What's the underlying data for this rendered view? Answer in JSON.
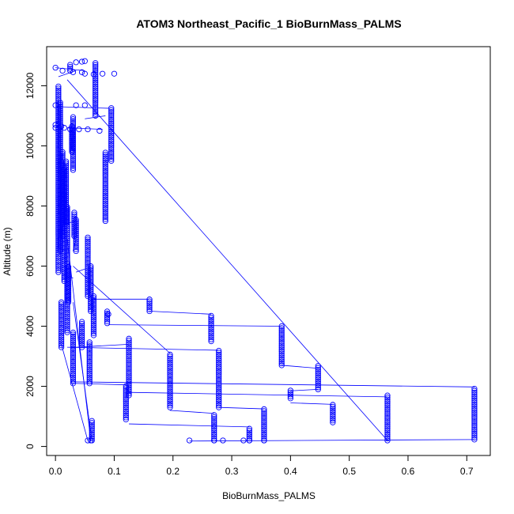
{
  "chart_data": {
    "type": "scatter",
    "title": "ATOM3 Northeast_Pacific_1 BioBurnMass_PALMS",
    "xlabel": "BioBurnMass_PALMS",
    "ylabel": "Altitude (m)",
    "xlim": [
      -0.015,
      0.74
    ],
    "ylim": [
      -300,
      13300
    ],
    "xticks": [
      0.0,
      0.1,
      0.2,
      0.3,
      0.4,
      0.5,
      0.6,
      0.7
    ],
    "xtick_labels": [
      "0.0",
      "0.1",
      "0.2",
      "0.3",
      "0.4",
      "0.5",
      "0.6",
      "0.7"
    ],
    "yticks": [
      0,
      2000,
      4000,
      6000,
      8000,
      10000,
      12000
    ],
    "ytick_labels": [
      "0",
      "2000",
      "4000",
      "6000",
      "8000",
      "10000",
      "12000"
    ],
    "grid": false,
    "legend": "none",
    "color": "#0000ff",
    "marker": "open-circle",
    "note_profiles": "vertical columns of points at constant x: [x, ymin, ymax]",
    "profiles": [
      [
        0.005,
        5800,
        12000
      ],
      [
        0.008,
        6500,
        11500
      ],
      [
        0.01,
        3300,
        4800
      ],
      [
        0.012,
        7000,
        9800
      ],
      [
        0.015,
        5500,
        9300
      ],
      [
        0.018,
        7400,
        9500
      ],
      [
        0.02,
        3800,
        8000
      ],
      [
        0.022,
        4800,
        6000
      ],
      [
        0.025,
        12500,
        12750
      ],
      [
        0.028,
        9800,
        10700
      ],
      [
        0.03,
        2100,
        3800
      ],
      [
        0.032,
        7000,
        7800
      ],
      [
        0.035,
        6500,
        7600
      ],
      [
        0.03,
        9200,
        11000
      ],
      [
        0.045,
        3300,
        4200
      ],
      [
        0.055,
        5000,
        7000
      ],
      [
        0.058,
        2100,
        3500
      ],
      [
        0.062,
        200,
        900
      ],
      [
        0.06,
        4500,
        6000
      ],
      [
        0.065,
        3700,
        5000
      ],
      [
        0.068,
        11000,
        12800
      ],
      [
        0.085,
        7500,
        9800
      ],
      [
        0.088,
        4100,
        4500
      ],
      [
        0.095,
        9500,
        11300
      ],
      [
        0.12,
        900,
        2050
      ],
      [
        0.125,
        1700,
        3600
      ],
      [
        0.16,
        4500,
        4900
      ],
      [
        0.195,
        1300,
        3100
      ],
      [
        0.265,
        3500,
        4400
      ],
      [
        0.27,
        200,
        1100
      ],
      [
        0.278,
        1300,
        3200
      ],
      [
        0.33,
        200,
        650
      ],
      [
        0.355,
        200,
        1300
      ],
      [
        0.385,
        2700,
        4000
      ],
      [
        0.4,
        1600,
        1900
      ],
      [
        0.447,
        1900,
        2700
      ],
      [
        0.472,
        800,
        1400
      ],
      [
        0.565,
        200,
        1700
      ],
      [
        0.713,
        230,
        1980
      ]
    ],
    "note_points": "isolated points / short horizontal runs: [x, y]",
    "points": [
      [
        0.0,
        12600
      ],
      [
        0.012,
        12500
      ],
      [
        0.03,
        12450
      ],
      [
        0.045,
        12450
      ],
      [
        0.05,
        12400
      ],
      [
        0.065,
        12380
      ],
      [
        0.08,
        12400
      ],
      [
        0.1,
        12400
      ],
      [
        0.035,
        12780
      ],
      [
        0.045,
        12800
      ],
      [
        0.05,
        12820
      ],
      [
        0.0,
        11350
      ],
      [
        0.035,
        11350
      ],
      [
        0.05,
        11350
      ],
      [
        0.0,
        10600
      ],
      [
        0.015,
        10600
      ],
      [
        0.025,
        10550
      ],
      [
        0.04,
        10550
      ],
      [
        0.055,
        10550
      ],
      [
        0.075,
        10500
      ],
      [
        0.0,
        10700
      ],
      [
        0.01,
        10650
      ],
      [
        0.055,
        200
      ],
      [
        0.06,
        200
      ],
      [
        0.228,
        200
      ],
      [
        0.27,
        200
      ],
      [
        0.285,
        200
      ],
      [
        0.32,
        200
      ],
      [
        0.33,
        200
      ],
      [
        0.355,
        200
      ],
      [
        0.09,
        4400
      ]
    ],
    "note_lines": "connecting line segments: [x1, y1, x2, y2]",
    "lines": [
      [
        0.02,
        12200,
        0.565,
        200
      ],
      [
        0.035,
        12500,
        0.005,
        12300
      ],
      [
        0.005,
        11300,
        0.09,
        11250
      ],
      [
        0.05,
        10900,
        0.085,
        11000
      ],
      [
        0.02,
        10600,
        0.08,
        10550
      ],
      [
        0.0,
        12600,
        0.05,
        12500
      ],
      [
        0.03,
        6000,
        0.195,
        3100
      ],
      [
        0.035,
        7500,
        0.015,
        7400
      ],
      [
        0.035,
        6900,
        0.03,
        6500
      ],
      [
        0.035,
        5800,
        0.05,
        5900
      ],
      [
        0.02,
        5700,
        0.03,
        5600
      ],
      [
        0.06,
        4900,
        0.16,
        4900
      ],
      [
        0.16,
        4500,
        0.265,
        4400
      ],
      [
        0.09,
        4050,
        0.385,
        4000
      ],
      [
        0.02,
        3300,
        0.278,
        3200
      ],
      [
        0.035,
        3300,
        0.125,
        3400
      ],
      [
        0.385,
        2700,
        0.447,
        2600
      ],
      [
        0.03,
        2150,
        0.713,
        1980
      ],
      [
        0.125,
        1800,
        0.565,
        1650
      ],
      [
        0.4,
        1850,
        0.447,
        1900
      ],
      [
        0.4,
        1450,
        0.472,
        1400
      ],
      [
        0.195,
        1200,
        0.27,
        1100
      ],
      [
        0.278,
        1300,
        0.355,
        1250
      ],
      [
        0.125,
        750,
        0.33,
        650
      ],
      [
        0.228,
        180,
        0.713,
        230
      ],
      [
        0.01,
        3400,
        0.055,
        200
      ],
      [
        0.02,
        6900,
        0.06,
        200
      ],
      [
        0.03,
        4800,
        0.062,
        200
      ],
      [
        0.12,
        2050,
        0.03,
        2100
      ]
    ]
  }
}
